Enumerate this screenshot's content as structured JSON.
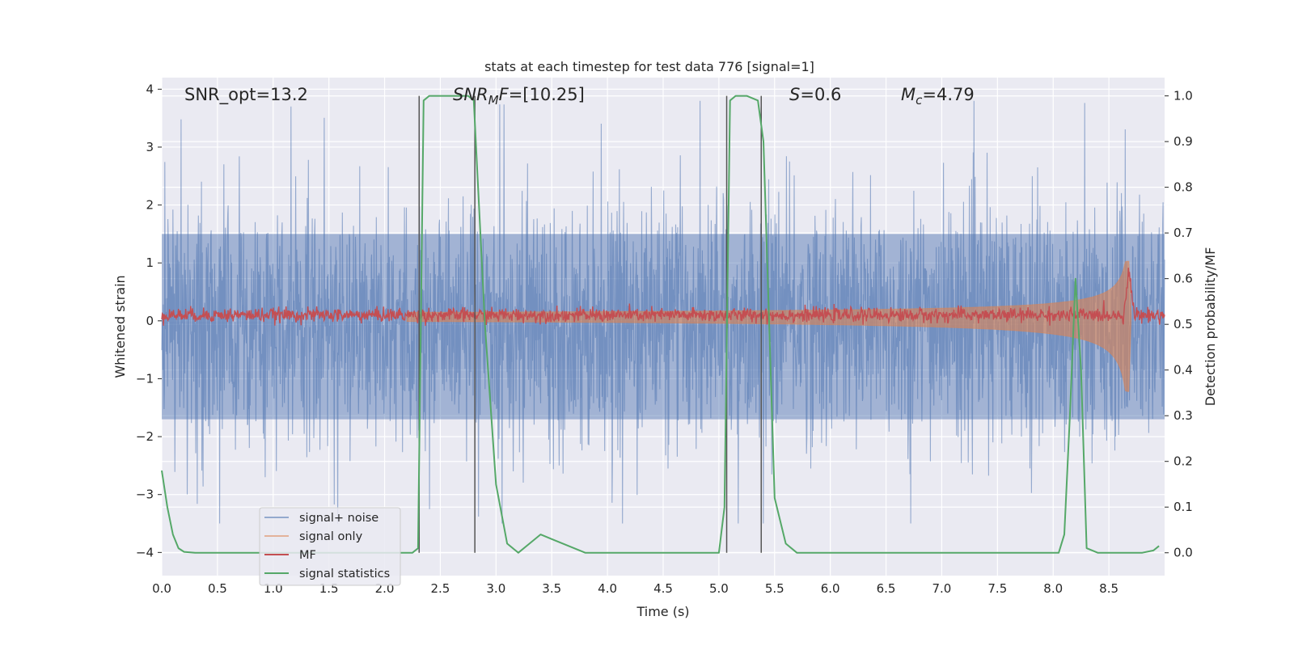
{
  "chart_data": {
    "type": "line",
    "title": "stats at each timestep for test data 776 [signal=1]",
    "xlabel": "Time (s)",
    "ylabel": "Whitened strain",
    "ylabel_right": "Detection probability/MF",
    "xlim": [
      0,
      9.0
    ],
    "ylim": [
      -4.4,
      4.2
    ],
    "ylim_right": [
      -0.05,
      1.04
    ],
    "x_ticks": [
      "0.0",
      "0.5",
      "1.0",
      "1.5",
      "2.0",
      "2.5",
      "3.0",
      "3.5",
      "4.0",
      "4.5",
      "5.0",
      "5.5",
      "6.0",
      "6.5",
      "7.0",
      "7.5",
      "8.0",
      "8.5"
    ],
    "y_ticks": [
      "4",
      "3",
      "2",
      "1",
      "0",
      "−1",
      "−2",
      "−3",
      "−4"
    ],
    "y_ticks_right": [
      "1.0",
      "0.9",
      "0.8",
      "0.7",
      "0.6",
      "0.5",
      "0.4",
      "0.3",
      "0.2",
      "0.1",
      "0.0"
    ],
    "annotations": {
      "snr_opt": "SNR_opt=13.2",
      "snr_mf_italic": "SNR",
      "snr_mf_sub": "M",
      "snr_mf_italic2": "F",
      "snr_mf_value": "=[10.25]",
      "s_italic": "S",
      "s_value": "=0.6",
      "mc_italic": "M",
      "mc_sub": "c",
      "mc_value": "=4.79"
    },
    "legend": {
      "location": "lower-left",
      "entries": [
        "signal+ noise",
        "signal only",
        "MF",
        "signal statistics"
      ]
    },
    "colors": {
      "noise": "#4c72b0",
      "signal": "#dd8452",
      "mf": "#c44e52",
      "stat": "#55a868",
      "vline": "#555555",
      "background": "#eaeaf2",
      "grid": "#ffffff"
    },
    "vertical_lines_x": [
      2.31,
      2.81,
      5.07,
      5.38
    ],
    "signal_statistics": {
      "x": [
        0.0,
        0.05,
        0.1,
        0.15,
        0.2,
        0.3,
        0.4,
        0.5,
        1.0,
        1.5,
        2.0,
        2.25,
        2.3,
        2.35,
        2.4,
        2.5,
        2.75,
        2.8,
        2.9,
        3.0,
        3.1,
        3.2,
        3.3,
        3.4,
        3.5,
        3.6,
        3.7,
        3.8,
        4.0,
        4.5,
        4.9,
        5.0,
        5.05,
        5.1,
        5.15,
        5.25,
        5.35,
        5.4,
        5.5,
        5.6,
        5.7,
        5.8,
        5.9,
        6.0,
        6.5,
        7.0,
        7.5,
        8.0,
        8.05,
        8.1,
        8.15,
        8.2,
        8.25,
        8.3,
        8.4,
        8.5,
        8.7,
        8.8,
        8.9,
        8.95
      ],
      "y": [
        0.18,
        0.1,
        0.04,
        0.01,
        0.002,
        0.0,
        0.0,
        0.0,
        0.0,
        0.0,
        0.0,
        0.0,
        0.01,
        0.99,
        1.0,
        1.0,
        1.0,
        0.99,
        0.5,
        0.15,
        0.02,
        0.0,
        0.02,
        0.04,
        0.03,
        0.02,
        0.01,
        0.0,
        0.0,
        0.0,
        0.0,
        0.0,
        0.1,
        0.99,
        1.0,
        1.0,
        0.99,
        0.9,
        0.12,
        0.02,
        0.0,
        0.0,
        0.0,
        0.0,
        0.0,
        0.0,
        0.0,
        0.0,
        0.0,
        0.04,
        0.3,
        0.6,
        0.4,
        0.01,
        0.0,
        0.0,
        0.0,
        0.0,
        0.005,
        0.015
      ]
    },
    "synthetic_series": {
      "noise_envelope": [
        -1.7,
        1.5
      ],
      "noise_peak_range": [
        -3.5,
        3.8
      ],
      "mf_baseline": 0.1,
      "chirp_end_x": 8.68,
      "chirp_peak_amplitude": 1.0
    }
  }
}
